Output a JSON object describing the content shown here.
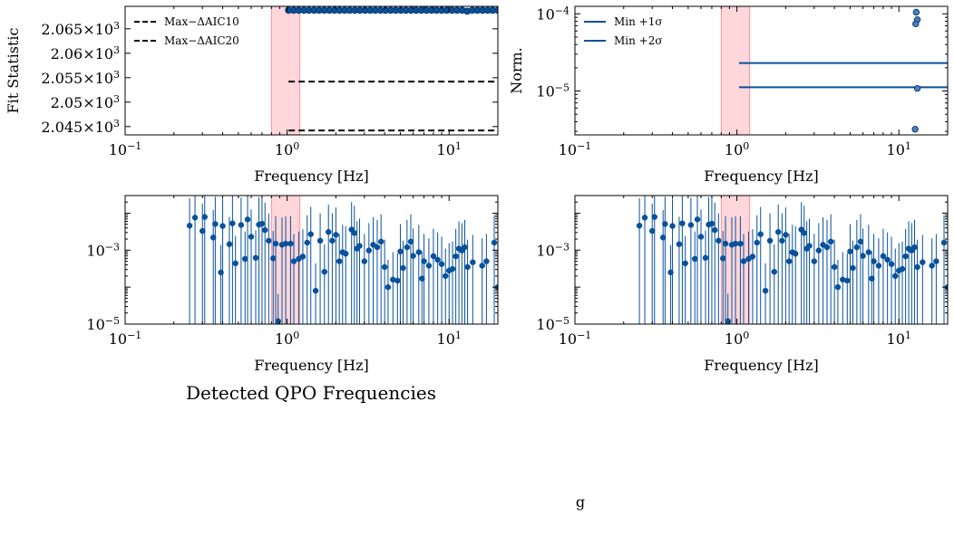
{
  "figure": {
    "caption": "Detected QPO Frequencies",
    "stray_text": "g"
  },
  "colors": {
    "series": "#08519c",
    "marker_edge": "#0b3b6e",
    "band_fill": "#ffc8cc",
    "band_edge": "#ff7f8a",
    "threshold_line": "#000000"
  },
  "chart_data": [
    {
      "id": "fit-statistic",
      "type": "scatter",
      "xscale": "log",
      "xlim": [
        0.1,
        20
      ],
      "ylim": [
        2.0433,
        2.0696
      ],
      "xlabel": "Frequency [Hz]",
      "ylabel": "Fit Statistic",
      "xticks": [
        {
          "v": 0.1,
          "b": "10",
          "e": "−1"
        },
        {
          "v": 1,
          "b": "10",
          "e": "0"
        },
        {
          "v": 10,
          "b": "10",
          "e": "1"
        }
      ],
      "yticks": [
        {
          "v": 2.045,
          "m": "2.045",
          "e": "3"
        },
        {
          "v": 2.05,
          "m": "2.05",
          "e": "3"
        },
        {
          "v": 2.055,
          "m": "2.055",
          "e": "3"
        },
        {
          "v": 2.06,
          "m": "2.06",
          "e": "3"
        },
        {
          "v": 2.065,
          "m": "2.065",
          "e": "3"
        }
      ],
      "shaded_band": [
        0.8,
        1.2
      ],
      "legend_position": "upper-left",
      "thresholds": [
        {
          "label": "Max−ΔAIC10",
          "y": 2.0542,
          "x_start": 1.02,
          "x_end": 20
        },
        {
          "label": "Max−ΔAIC20",
          "y": 2.0442,
          "x_start": 1.02,
          "x_end": 20
        }
      ],
      "points": {
        "x_start": 1.02,
        "x_end": 20,
        "count": 42,
        "y": 2.0688,
        "y_dip_at": 0.85,
        "y_dip": 2.0686
      }
    },
    {
      "id": "norm",
      "type": "scatter",
      "xscale": "log",
      "yscale": "log",
      "xlim": [
        0.1,
        20
      ],
      "ylim": [
        2.7e-06,
        0.000125
      ],
      "xlabel": "Frequency [Hz]",
      "ylabel": "Norm.",
      "xticks": [
        {
          "v": 0.1,
          "b": "10",
          "e": "−1"
        },
        {
          "v": 1,
          "b": "10",
          "e": "0"
        },
        {
          "v": 10,
          "b": "10",
          "e": "1"
        }
      ],
      "yticks": [
        {
          "v": 1e-05,
          "b": "10",
          "e": "−5"
        },
        {
          "v": 0.0001,
          "b": "10",
          "e": "−4"
        }
      ],
      "shaded_band": [
        0.8,
        1.2
      ],
      "legend_position": "upper-left",
      "lines": [
        {
          "label": "Min +1σ",
          "y": 2.3e-05,
          "x_start": 1.03,
          "x_end": 20
        },
        {
          "label": "Min +2σ",
          "y": 1.12e-05,
          "x_start": 1.03,
          "x_end": 20
        }
      ],
      "points": [
        {
          "x": 12.8,
          "y": 0.000105
        },
        {
          "x": 13.0,
          "y": 8.4e-05
        },
        {
          "x": 12.7,
          "y": 7.4e-05
        },
        {
          "x": 13.0,
          "y": 1.08e-05
        },
        {
          "x": 12.6,
          "y": 3.2e-06
        }
      ]
    },
    {
      "id": "detections-left",
      "type": "scatter",
      "xscale": "log",
      "yscale": "log",
      "xlim": [
        0.1,
        20
      ],
      "ylim": [
        1e-05,
        0.03
      ],
      "xlabel": "Frequency [Hz]",
      "xticks": [
        {
          "v": 0.1,
          "b": "10",
          "e": "−1"
        },
        {
          "v": 1,
          "b": "10",
          "e": "0"
        },
        {
          "v": 10,
          "b": "10",
          "e": "1"
        }
      ],
      "yticks": [
        {
          "v": 1e-05,
          "b": "10",
          "e": "−5"
        },
        {
          "v": 0.001,
          "b": "10",
          "e": "−3"
        }
      ],
      "shaded_band": [
        0.8,
        1.2
      ],
      "points": [
        [
          0.25,
          0.0046
        ],
        [
          0.27,
          0.0076
        ],
        [
          0.3,
          0.0033
        ],
        [
          0.31,
          0.0079
        ],
        [
          0.35,
          0.0022
        ],
        [
          0.36,
          0.0051
        ],
        [
          0.39,
          0.00025
        ],
        [
          0.4,
          0.0045
        ],
        [
          0.44,
          0.00145
        ],
        [
          0.46,
          0.0053
        ],
        [
          0.48,
          0.00044
        ],
        [
          0.52,
          0.0048
        ],
        [
          0.55,
          0.00058
        ],
        [
          0.57,
          0.0068
        ],
        [
          0.6,
          0.0023
        ],
        [
          0.64,
          0.00062
        ],
        [
          0.67,
          0.0049
        ],
        [
          0.7,
          0.0052
        ],
        [
          0.73,
          0.0035
        ],
        [
          0.77,
          0.0018
        ],
        [
          0.82,
          0.0006
        ],
        [
          0.85,
          0.0015
        ],
        [
          0.88,
          1.2e-05
        ],
        [
          0.93,
          0.0014
        ],
        [
          0.98,
          0.0015
        ],
        [
          1.05,
          0.0015
        ],
        [
          1.1,
          0.0005
        ],
        [
          1.18,
          0.00058
        ],
        [
          1.25,
          0.00067
        ],
        [
          1.33,
          0.0016
        ],
        [
          1.4,
          0.0027
        ],
        [
          1.5,
          8e-05
        ],
        [
          1.6,
          0.0018
        ],
        [
          1.7,
          0.00026
        ],
        [
          1.8,
          0.0031
        ],
        [
          1.9,
          0.0018
        ],
        [
          2.0,
          0.0026
        ],
        [
          2.1,
          0.0005
        ],
        [
          2.2,
          0.00088
        ],
        [
          2.3,
          0.0008
        ],
        [
          2.5,
          0.0036
        ],
        [
          2.6,
          0.0029
        ],
        [
          2.7,
          0.0011
        ],
        [
          2.8,
          0.0013
        ],
        [
          3.0,
          0.0005
        ],
        [
          3.2,
          0.00098
        ],
        [
          3.4,
          0.0014
        ],
        [
          3.6,
          0.0012
        ],
        [
          3.8,
          0.0017
        ],
        [
          4.0,
          0.00035
        ],
        [
          4.2,
          0.0001
        ],
        [
          4.5,
          0.00016
        ],
        [
          4.8,
          0.00015
        ],
        [
          5.0,
          0.00092
        ],
        [
          5.2,
          0.00033
        ],
        [
          5.5,
          0.0012
        ],
        [
          5.8,
          0.0017
        ],
        [
          6.0,
          0.0007
        ],
        [
          6.5,
          0.00088
        ],
        [
          6.8,
          0.00017
        ],
        [
          7.0,
          0.0005
        ],
        [
          7.5,
          0.00038
        ],
        [
          8.0,
          0.00069
        ],
        [
          8.5,
          0.00055
        ],
        [
          9.0,
          0.00042
        ],
        [
          9.5,
          0.0002
        ],
        [
          10.0,
          0.00028
        ],
        [
          10.5,
          0.00031
        ],
        [
          11.0,
          0.00068
        ],
        [
          11.5,
          0.0011
        ],
        [
          12.0,
          0.00098
        ],
        [
          12.5,
          0.0012
        ],
        [
          13.0,
          0.00035
        ],
        [
          14.0,
          0.00047
        ],
        [
          16.0,
          0.00038
        ],
        [
          17.0,
          0.0005
        ],
        [
          19.0,
          0.0016
        ],
        [
          20.0,
          0.0001
        ]
      ]
    },
    {
      "id": "detections-right",
      "type": "scatter",
      "xscale": "log",
      "yscale": "log",
      "xlim": [
        0.1,
        20
      ],
      "ylim": [
        1e-05,
        0.03
      ],
      "xlabel": "Frequency [Hz]",
      "xticks": [
        {
          "v": 0.1,
          "b": "10",
          "e": "−1"
        },
        {
          "v": 1,
          "b": "10",
          "e": "0"
        },
        {
          "v": 10,
          "b": "10",
          "e": "1"
        }
      ],
      "yticks": [
        {
          "v": 1e-05,
          "b": "10",
          "e": "−5"
        },
        {
          "v": 0.001,
          "b": "10",
          "e": "−3"
        }
      ],
      "shaded_band": [
        0.8,
        1.2
      ],
      "points_same_as": "detections-left"
    }
  ]
}
